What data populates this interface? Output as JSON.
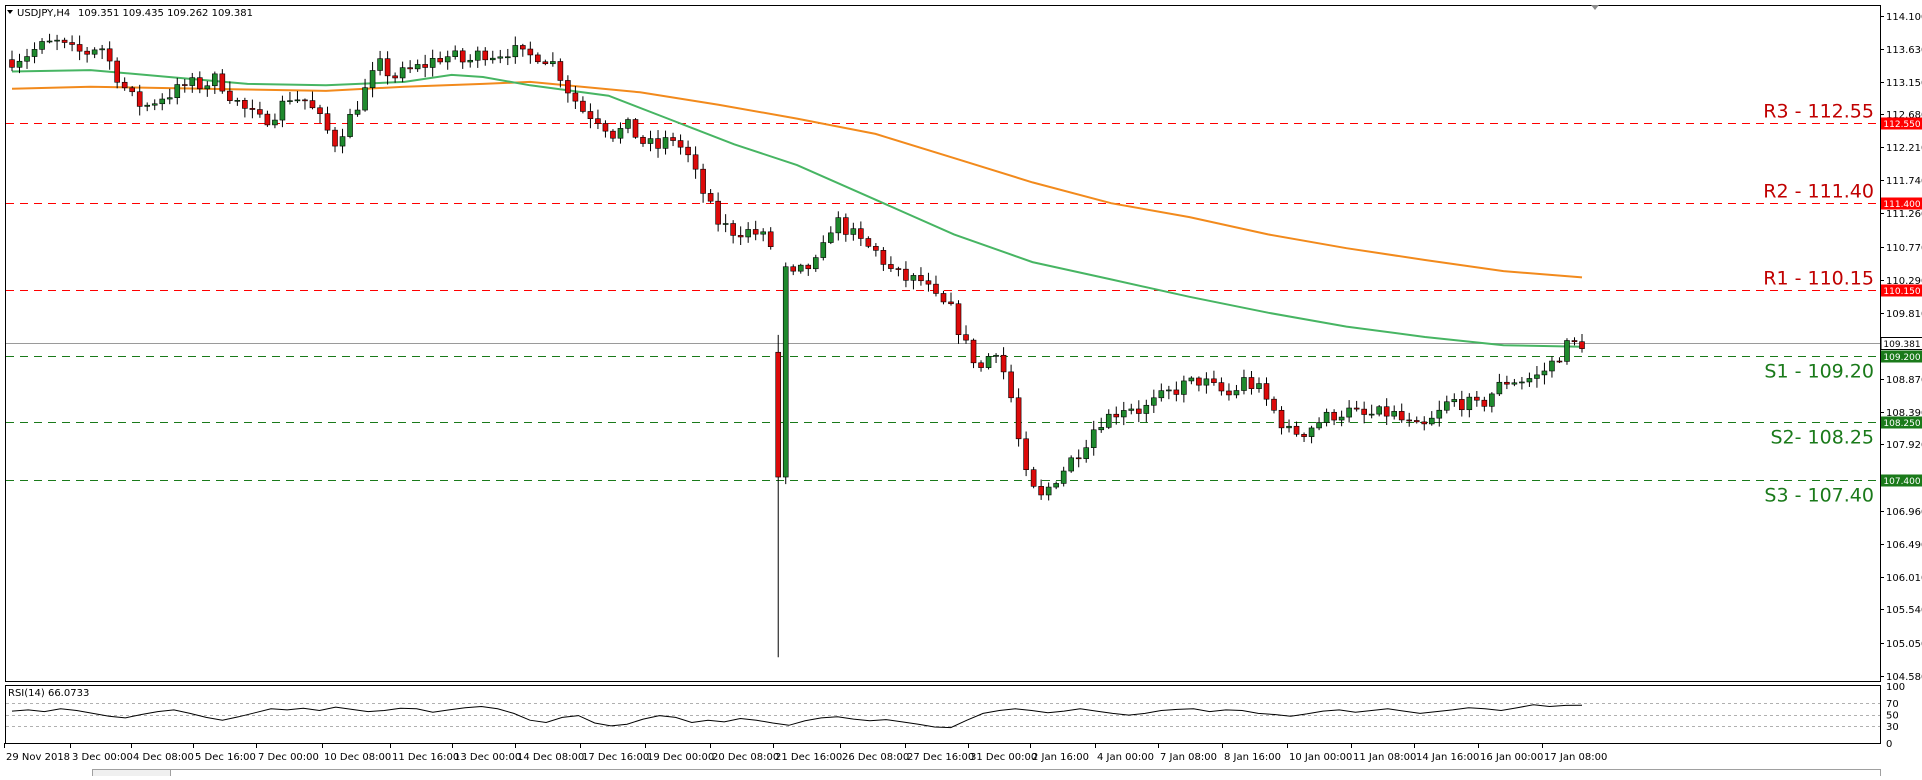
{
  "header": {
    "symbol": "USDJPY,H4",
    "quote": "109.351 109.435 109.262 109.381"
  },
  "rsi_header": "RSI(14) 66.0733",
  "colors": {
    "bull": "#1f8a2e",
    "bear": "#dd0a0a",
    "ma_fast": "#47b563",
    "ma_slow": "#f28a1c",
    "resistance": "#ff0000",
    "support": "#1a7a1a",
    "price_line": "#9a9a9a"
  },
  "chart_data": {
    "type": "candlestick",
    "instrument": "USDJPY",
    "timeframe": "H4",
    "ylim": [
      104.58,
      114.1
    ],
    "y_ticks": [
      "114.100",
      "113.630",
      "113.150",
      "112.680",
      "112.210",
      "111.740",
      "111.260",
      "110.770",
      "110.290",
      "109.810",
      "109.350",
      "108.870",
      "108.390",
      "107.920",
      "107.440",
      "106.960",
      "106.490",
      "106.010",
      "105.540",
      "105.050",
      "104.580"
    ],
    "x_ticks": [
      "29 Nov 2018",
      "3 Dec 00:00",
      "4 Dec 08:00",
      "5 Dec 16:00",
      "7 Dec 00:00",
      "10 Dec 08:00",
      "11 Dec 16:00",
      "13 Dec 00:00",
      "14 Dec 08:00",
      "17 Dec 16:00",
      "19 Dec 00:00",
      "20 Dec 08:00",
      "21 Dec 16:00",
      "26 Dec 08:00",
      "27 Dec 16:00",
      "31 Dec 00:00",
      "2 Jan 16:00",
      "4 Jan 00:00",
      "7 Jan 08:00",
      "8 Jan 16:00",
      "10 Jan 00:00",
      "11 Jan 08:00",
      "14 Jan 16:00",
      "16 Jan 00:00",
      "17 Jan 08:00"
    ],
    "levels": [
      {
        "label": "R3 - 112.55",
        "value": 112.55,
        "tag": "112.550",
        "kind": "resistance"
      },
      {
        "label": "R2 - 111.40",
        "value": 111.4,
        "tag": "111.400",
        "kind": "resistance"
      },
      {
        "label": "R1 - 110.15",
        "value": 110.15,
        "tag": "110.150",
        "kind": "resistance"
      },
      {
        "label": "S1 - 109.20",
        "value": 109.2,
        "tag": "109.200",
        "kind": "support"
      },
      {
        "label": "S2- 108.25",
        "value": 108.25,
        "tag": "108.250",
        "kind": "support"
      },
      {
        "label": "S3 - 107.40",
        "value": 107.4,
        "tag": "107.400",
        "kind": "support"
      }
    ],
    "current_price": {
      "value": 109.381,
      "tag": "109.381"
    },
    "close_path": [
      113.47,
      113.55,
      113.66,
      113.72,
      113.6,
      113.56,
      113.7,
      113.3,
      112.95,
      112.78,
      112.92,
      113.0,
      113.12,
      113.1,
      113.2,
      112.93,
      112.72,
      112.58,
      112.72,
      112.95,
      112.88,
      112.6,
      112.28,
      112.62,
      113.0,
      113.4,
      113.22,
      113.3,
      113.38,
      113.5,
      113.52,
      113.42,
      113.58,
      113.55,
      113.62,
      113.5,
      113.55,
      113.4,
      113.0,
      112.72,
      112.62,
      112.4,
      112.5,
      112.28,
      112.2,
      112.35,
      112.1,
      111.6,
      111.15,
      111.0,
      111.0,
      110.95,
      110.72,
      110.3,
      110.45,
      110.55,
      111.18,
      111.0,
      110.8,
      110.68,
      110.4,
      110.3,
      110.28,
      110.0,
      109.85,
      109.35,
      109.0,
      109.35,
      108.7,
      107.5,
      107.1,
      107.4,
      107.65,
      107.9,
      108.25,
      108.35,
      108.5,
      108.4,
      108.55,
      108.68,
      108.78,
      108.85,
      108.72,
      108.62,
      108.85,
      108.7,
      108.4,
      108.1,
      108.1,
      108.25,
      108.35,
      108.4,
      108.32,
      108.35,
      108.38,
      108.22,
      108.12,
      108.3,
      108.55,
      108.52,
      108.45,
      108.7,
      108.85,
      108.85,
      108.9,
      109.1,
      109.35,
      109.381
    ],
    "rsi": {
      "value": 66.0733,
      "levels": [
        70,
        50,
        30
      ],
      "axis_ticks": [
        "100",
        "70",
        "50",
        "30",
        "0"
      ],
      "path": [
        56,
        58,
        55,
        60,
        57,
        52,
        47,
        44,
        50,
        55,
        58,
        52,
        45,
        40,
        46,
        53,
        60,
        58,
        61,
        57,
        63,
        59,
        55,
        57,
        61,
        60,
        54,
        58,
        62,
        64,
        60,
        52,
        40,
        36,
        45,
        48,
        35,
        30,
        33,
        42,
        48,
        45,
        36,
        40,
        37,
        43,
        40,
        35,
        31,
        39,
        44,
        46,
        42,
        39,
        41,
        37,
        33,
        28,
        27,
        40,
        52,
        57,
        60,
        57,
        53,
        56,
        60,
        56,
        52,
        49,
        52,
        57,
        59,
        60,
        55,
        58,
        57,
        52,
        50,
        47,
        51,
        56,
        58,
        54,
        57,
        60,
        56,
        52,
        55,
        58,
        62,
        60,
        57,
        62,
        67,
        64,
        66,
        66.07
      ]
    },
    "ma_fast": [
      [
        0,
        113.3
      ],
      [
        0.05,
        113.32
      ],
      [
        0.1,
        113.22
      ],
      [
        0.15,
        113.12
      ],
      [
        0.2,
        113.1
      ],
      [
        0.25,
        113.15
      ],
      [
        0.28,
        113.25
      ],
      [
        0.3,
        113.22
      ],
      [
        0.33,
        113.1
      ],
      [
        0.38,
        112.95
      ],
      [
        0.42,
        112.6
      ],
      [
        0.46,
        112.25
      ],
      [
        0.5,
        111.95
      ],
      [
        0.55,
        111.45
      ],
      [
        0.6,
        110.95
      ],
      [
        0.65,
        110.55
      ],
      [
        0.7,
        110.3
      ],
      [
        0.75,
        110.05
      ],
      [
        0.8,
        109.82
      ],
      [
        0.85,
        109.62
      ],
      [
        0.9,
        109.47
      ],
      [
        0.95,
        109.35
      ],
      [
        1.0,
        109.33
      ]
    ],
    "ma_slow": [
      [
        0,
        113.05
      ],
      [
        0.05,
        113.08
      ],
      [
        0.1,
        113.06
      ],
      [
        0.15,
        113.04
      ],
      [
        0.2,
        113.02
      ],
      [
        0.25,
        113.08
      ],
      [
        0.3,
        113.12
      ],
      [
        0.33,
        113.15
      ],
      [
        0.4,
        113.0
      ],
      [
        0.45,
        112.82
      ],
      [
        0.5,
        112.62
      ],
      [
        0.55,
        112.4
      ],
      [
        0.6,
        112.05
      ],
      [
        0.65,
        111.7
      ],
      [
        0.7,
        111.4
      ],
      [
        0.75,
        111.2
      ],
      [
        0.8,
        110.95
      ],
      [
        0.85,
        110.75
      ],
      [
        0.9,
        110.58
      ],
      [
        0.95,
        110.42
      ],
      [
        1.0,
        110.33
      ]
    ]
  }
}
